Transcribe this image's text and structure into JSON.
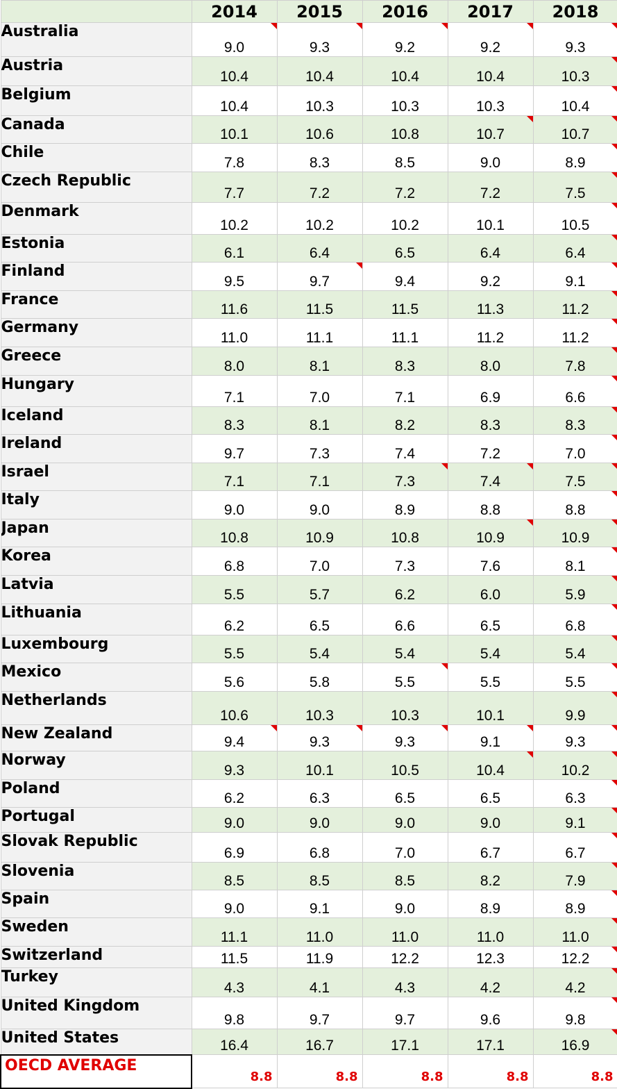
{
  "headers": {
    "years": [
      "2014",
      "2015",
      "2016",
      "2017",
      "2018"
    ]
  },
  "rows": [
    {
      "country": "Australia",
      "values": [
        "9.0",
        "9.3",
        "9.2",
        "9.2",
        "9.3"
      ],
      "flags": [
        1,
        1,
        1,
        1,
        1
      ]
    },
    {
      "country": "Austria",
      "values": [
        "10.4",
        "10.4",
        "10.4",
        "10.4",
        "10.3"
      ],
      "flags": [
        0,
        0,
        0,
        0,
        1
      ]
    },
    {
      "country": "Belgium",
      "values": [
        "10.4",
        "10.3",
        "10.3",
        "10.3",
        "10.4"
      ],
      "flags": [
        0,
        0,
        0,
        0,
        1
      ]
    },
    {
      "country": "Canada",
      "values": [
        "10.1",
        "10.6",
        "10.8",
        "10.7",
        "10.7"
      ],
      "flags": [
        0,
        0,
        0,
        1,
        1
      ]
    },
    {
      "country": "Chile",
      "values": [
        "7.8",
        "8.3",
        "8.5",
        "9.0",
        "8.9"
      ],
      "flags": [
        0,
        0,
        0,
        0,
        1
      ]
    },
    {
      "country": "Czech Republic",
      "values": [
        "7.7",
        "7.2",
        "7.2",
        "7.2",
        "7.5"
      ],
      "flags": [
        0,
        0,
        0,
        0,
        1
      ]
    },
    {
      "country": "Denmark",
      "values": [
        "10.2",
        "10.2",
        "10.2",
        "10.1",
        "10.5"
      ],
      "flags": [
        0,
        0,
        0,
        0,
        1
      ]
    },
    {
      "country": "Estonia",
      "values": [
        "6.1",
        "6.4",
        "6.5",
        "6.4",
        "6.4"
      ],
      "flags": [
        0,
        0,
        0,
        0,
        1
      ]
    },
    {
      "country": "Finland",
      "values": [
        "9.5",
        "9.7",
        "9.4",
        "9.2",
        "9.1"
      ],
      "flags": [
        0,
        1,
        0,
        0,
        1
      ]
    },
    {
      "country": "France",
      "values": [
        "11.6",
        "11.5",
        "11.5",
        "11.3",
        "11.2"
      ],
      "flags": [
        0,
        0,
        0,
        0,
        1
      ]
    },
    {
      "country": "Germany",
      "values": [
        "11.0",
        "11.1",
        "11.1",
        "11.2",
        "11.2"
      ],
      "flags": [
        0,
        0,
        0,
        0,
        1
      ]
    },
    {
      "country": "Greece",
      "values": [
        "8.0",
        "8.1",
        "8.3",
        "8.0",
        "7.8"
      ],
      "flags": [
        0,
        0,
        0,
        0,
        1
      ]
    },
    {
      "country": "Hungary",
      "values": [
        "7.1",
        "7.0",
        "7.1",
        "6.9",
        "6.6"
      ],
      "flags": [
        0,
        0,
        0,
        0,
        1
      ]
    },
    {
      "country": "Iceland",
      "values": [
        "8.3",
        "8.1",
        "8.2",
        "8.3",
        "8.3"
      ],
      "flags": [
        0,
        0,
        0,
        0,
        1
      ]
    },
    {
      "country": "Ireland",
      "values": [
        "9.7",
        "7.3",
        "7.4",
        "7.2",
        "7.0"
      ],
      "flags": [
        0,
        0,
        0,
        0,
        1
      ]
    },
    {
      "country": "Israel",
      "values": [
        "7.1",
        "7.1",
        "7.3",
        "7.4",
        "7.5"
      ],
      "flags": [
        0,
        0,
        1,
        1,
        1
      ]
    },
    {
      "country": "Italy",
      "values": [
        "9.0",
        "9.0",
        "8.9",
        "8.8",
        "8.8"
      ],
      "flags": [
        0,
        0,
        0,
        0,
        1
      ]
    },
    {
      "country": "Japan",
      "values": [
        "10.8",
        "10.9",
        "10.8",
        "10.9",
        "10.9"
      ],
      "flags": [
        0,
        0,
        0,
        1,
        1
      ]
    },
    {
      "country": "Korea",
      "values": [
        "6.8",
        "7.0",
        "7.3",
        "7.6",
        "8.1"
      ],
      "flags": [
        0,
        0,
        0,
        0,
        1
      ]
    },
    {
      "country": "Latvia",
      "values": [
        "5.5",
        "5.7",
        "6.2",
        "6.0",
        "5.9"
      ],
      "flags": [
        0,
        0,
        0,
        0,
        1
      ]
    },
    {
      "country": "Lithuania",
      "values": [
        "6.2",
        "6.5",
        "6.6",
        "6.5",
        "6.8"
      ],
      "flags": [
        0,
        0,
        0,
        0,
        1
      ]
    },
    {
      "country": "Luxembourg",
      "values": [
        "5.5",
        "5.4",
        "5.4",
        "5.4",
        "5.4"
      ],
      "flags": [
        0,
        0,
        0,
        0,
        1
      ]
    },
    {
      "country": "Mexico",
      "values": [
        "5.6",
        "5.8",
        "5.5",
        "5.5",
        "5.5"
      ],
      "flags": [
        0,
        0,
        1,
        0,
        1
      ]
    },
    {
      "country": "Netherlands",
      "values": [
        "10.6",
        "10.3",
        "10.3",
        "10.1",
        "9.9"
      ],
      "flags": [
        0,
        0,
        0,
        0,
        1
      ]
    },
    {
      "country": "New Zealand",
      "values": [
        "9.4",
        "9.3",
        "9.3",
        "9.1",
        "9.3"
      ],
      "flags": [
        1,
        1,
        1,
        1,
        1
      ]
    },
    {
      "country": "Norway",
      "values": [
        "9.3",
        "10.1",
        "10.5",
        "10.4",
        "10.2"
      ],
      "flags": [
        0,
        0,
        0,
        1,
        1
      ]
    },
    {
      "country": "Poland",
      "values": [
        "6.2",
        "6.3",
        "6.5",
        "6.5",
        "6.3"
      ],
      "flags": [
        0,
        0,
        0,
        0,
        1
      ]
    },
    {
      "country": "Portugal",
      "values": [
        "9.0",
        "9.0",
        "9.0",
        "9.0",
        "9.1"
      ],
      "flags": [
        0,
        0,
        0,
        0,
        1
      ]
    },
    {
      "country": "Slovak Republic",
      "values": [
        "6.9",
        "6.8",
        "7.0",
        "6.7",
        "6.7"
      ],
      "flags": [
        0,
        0,
        0,
        0,
        1
      ]
    },
    {
      "country": "Slovenia",
      "values": [
        "8.5",
        "8.5",
        "8.5",
        "8.2",
        "7.9"
      ],
      "flags": [
        0,
        0,
        0,
        0,
        1
      ]
    },
    {
      "country": "Spain",
      "values": [
        "9.0",
        "9.1",
        "9.0",
        "8.9",
        "8.9"
      ],
      "flags": [
        0,
        0,
        0,
        0,
        1
      ]
    },
    {
      "country": "Sweden",
      "values": [
        "11.1",
        "11.0",
        "11.0",
        "11.0",
        "11.0"
      ],
      "flags": [
        0,
        0,
        0,
        0,
        1
      ]
    },
    {
      "country": "Switzerland",
      "values": [
        "11.5",
        "11.9",
        "12.2",
        "12.3",
        "12.2"
      ],
      "flags": [
        0,
        0,
        0,
        0,
        1
      ]
    },
    {
      "country": "Turkey",
      "values": [
        "4.3",
        "4.1",
        "4.3",
        "4.2",
        "4.2"
      ],
      "flags": [
        0,
        0,
        0,
        0,
        1
      ]
    },
    {
      "country": "United Kingdom",
      "values": [
        "9.8",
        "9.7",
        "9.7",
        "9.6",
        "9.8"
      ],
      "flags": [
        0,
        0,
        0,
        0,
        1
      ]
    },
    {
      "country": "United States",
      "values": [
        "16.4",
        "16.7",
        "17.1",
        "17.1",
        "16.9"
      ],
      "flags": [
        0,
        0,
        0,
        0,
        1
      ]
    }
  ],
  "average": {
    "label": "OECD AVERAGE",
    "values": [
      "8.8",
      "8.8",
      "8.8",
      "8.8",
      "8.8"
    ]
  },
  "colors": {
    "header_fill": "#e4f0dc",
    "shade_fill": "#e4f0dc",
    "label_fill": "#f2f2f2",
    "flag": "#e00000",
    "avg_text": "#e00000"
  }
}
